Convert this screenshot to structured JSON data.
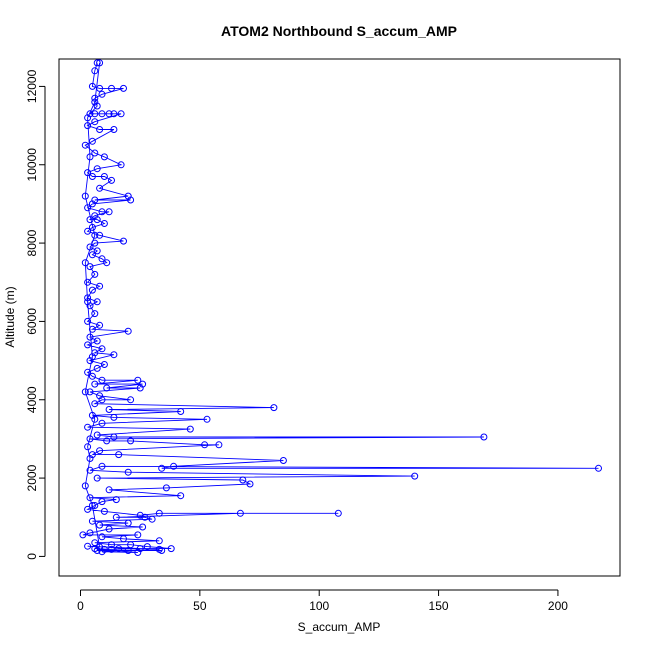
{
  "chart_data": {
    "type": "line",
    "title": "ATOM2 Northbound S_accum_AMP",
    "xlabel": "S_accum_AMP",
    "ylabel": "Altitude (m)",
    "xlim": [
      -9,
      226
    ],
    "ylim": [
      -500,
      12700
    ],
    "xticks": [
      0,
      50,
      100,
      150,
      200
    ],
    "yticks": [
      0,
      2000,
      4000,
      6000,
      8000,
      10000,
      12000
    ],
    "grid": false,
    "legend": "none",
    "colors": {
      "series": "#0000ff",
      "axis": "#000000"
    },
    "series": [
      {
        "marker": "open-circle",
        "points": [
          [
            7,
            12600
          ],
          [
            6,
            12400
          ],
          [
            5,
            12000
          ],
          [
            8,
            11950
          ],
          [
            13,
            11950
          ],
          [
            18,
            11950
          ],
          [
            9,
            11800
          ],
          [
            6,
            11700
          ],
          [
            7,
            11500
          ],
          [
            4,
            11300
          ],
          [
            6,
            11300
          ],
          [
            9,
            11300
          ],
          [
            12,
            11300
          ],
          [
            14,
            11300
          ],
          [
            17,
            11300
          ],
          [
            6,
            11100
          ],
          [
            3,
            11000
          ],
          [
            8,
            10900
          ],
          [
            14,
            10900
          ],
          [
            5,
            10600
          ],
          [
            2,
            10500
          ],
          [
            6,
            10300
          ],
          [
            10,
            10200
          ],
          [
            17,
            10000
          ],
          [
            7,
            9900
          ],
          [
            3,
            9800
          ],
          [
            5,
            9700
          ],
          [
            10,
            9700
          ],
          [
            13,
            9600
          ],
          [
            8,
            9400
          ],
          [
            20,
            9200
          ],
          [
            6,
            9100
          ],
          [
            21,
            9100
          ],
          [
            5,
            9000
          ],
          [
            3,
            8900
          ],
          [
            9,
            8800
          ],
          [
            12,
            8800
          ],
          [
            6,
            8700
          ],
          [
            4,
            8600
          ],
          [
            7,
            8600
          ],
          [
            10,
            8500
          ],
          [
            5,
            8400
          ],
          [
            3,
            8300
          ],
          [
            8,
            8200
          ],
          [
            18,
            8050
          ],
          [
            6,
            8000
          ],
          [
            4,
            7900
          ],
          [
            7,
            7800
          ],
          [
            5,
            7700
          ],
          [
            9,
            7600
          ],
          [
            11,
            7500
          ],
          [
            4,
            7400
          ],
          [
            6,
            7200
          ],
          [
            3,
            7000
          ],
          [
            8,
            6900
          ],
          [
            5,
            6800
          ],
          [
            3,
            6600
          ],
          [
            7,
            6500
          ],
          [
            4,
            6400
          ],
          [
            6,
            6200
          ],
          [
            3,
            6000
          ],
          [
            8,
            5900
          ],
          [
            5,
            5800
          ],
          [
            20,
            5750
          ],
          [
            4,
            5600
          ],
          [
            7,
            5500
          ],
          [
            3,
            5400
          ],
          [
            9,
            5300
          ],
          [
            6,
            5200
          ],
          [
            14,
            5150
          ],
          [
            4,
            5000
          ],
          [
            10,
            4900
          ],
          [
            7,
            4800
          ],
          [
            3,
            4700
          ],
          [
            5,
            4600
          ],
          [
            9,
            4500
          ],
          [
            24,
            4500
          ],
          [
            6,
            4400
          ],
          [
            26,
            4400
          ],
          [
            11,
            4300
          ],
          [
            25,
            4300
          ],
          [
            4,
            4200
          ],
          [
            8,
            4100
          ],
          [
            21,
            4000
          ],
          [
            9,
            4000
          ],
          [
            6,
            3900
          ],
          [
            81,
            3800
          ],
          [
            12,
            3750
          ],
          [
            42,
            3700
          ],
          [
            5,
            3600
          ],
          [
            14,
            3550
          ],
          [
            53,
            3500
          ],
          [
            9,
            3400
          ],
          [
            3,
            3300
          ],
          [
            46,
            3250
          ],
          [
            7,
            3100
          ],
          [
            14,
            3050
          ],
          [
            169,
            3050
          ],
          [
            4,
            3000
          ],
          [
            11,
            2950
          ],
          [
            21,
            2950
          ],
          [
            52,
            2850
          ],
          [
            58,
            2850
          ],
          [
            8,
            2700
          ],
          [
            5,
            2600
          ],
          [
            16,
            2600
          ],
          [
            85,
            2450
          ],
          [
            39,
            2300
          ],
          [
            34,
            2250
          ],
          [
            217,
            2250
          ],
          [
            9,
            2300
          ],
          [
            4,
            2200
          ],
          [
            20,
            2150
          ],
          [
            140,
            2050
          ],
          [
            7,
            2000
          ],
          [
            68,
            1950
          ],
          [
            71,
            1850
          ],
          [
            36,
            1750
          ],
          [
            12,
            1700
          ],
          [
            42,
            1550
          ],
          [
            4,
            1500
          ],
          [
            15,
            1450
          ],
          [
            9,
            1400
          ],
          [
            6,
            1300
          ],
          [
            3,
            1200
          ],
          [
            10,
            1150
          ],
          [
            25,
            1050
          ],
          [
            33,
            1100
          ],
          [
            108,
            1100
          ],
          [
            67,
            1100
          ],
          [
            15,
            1000
          ],
          [
            27,
            1000
          ],
          [
            30,
            950
          ],
          [
            5,
            900
          ],
          [
            20,
            850
          ],
          [
            8,
            800
          ],
          [
            26,
            750
          ],
          [
            12,
            700
          ],
          [
            4,
            600
          ],
          [
            1,
            550
          ],
          [
            24,
            550
          ],
          [
            9,
            500
          ],
          [
            18,
            450
          ],
          [
            33,
            400
          ],
          [
            6,
            350
          ],
          [
            13,
            300
          ],
          [
            21,
            300
          ],
          [
            28,
            250
          ],
          [
            38,
            200
          ],
          [
            25,
            200
          ],
          [
            10,
            180
          ],
          [
            7,
            150
          ],
          [
            34,
            150
          ],
          [
            20,
            150
          ],
          [
            9,
            120
          ],
          [
            24,
            100
          ],
          [
            6,
            200
          ],
          [
            13,
            180
          ],
          [
            16,
            200
          ],
          [
            33,
            180
          ],
          [
            3,
            260
          ],
          [
            8,
            240
          ],
          [
            5,
            1300
          ],
          [
            2,
            1800
          ],
          [
            4,
            2500
          ],
          [
            3,
            2800
          ],
          [
            6,
            3500
          ],
          [
            2,
            4200
          ],
          [
            5,
            5100
          ],
          [
            3,
            6500
          ],
          [
            2,
            7500
          ],
          [
            6,
            8200
          ],
          [
            2,
            9200
          ],
          [
            4,
            10200
          ],
          [
            3,
            11200
          ],
          [
            6,
            11600
          ],
          [
            8,
            12600
          ]
        ]
      }
    ]
  }
}
